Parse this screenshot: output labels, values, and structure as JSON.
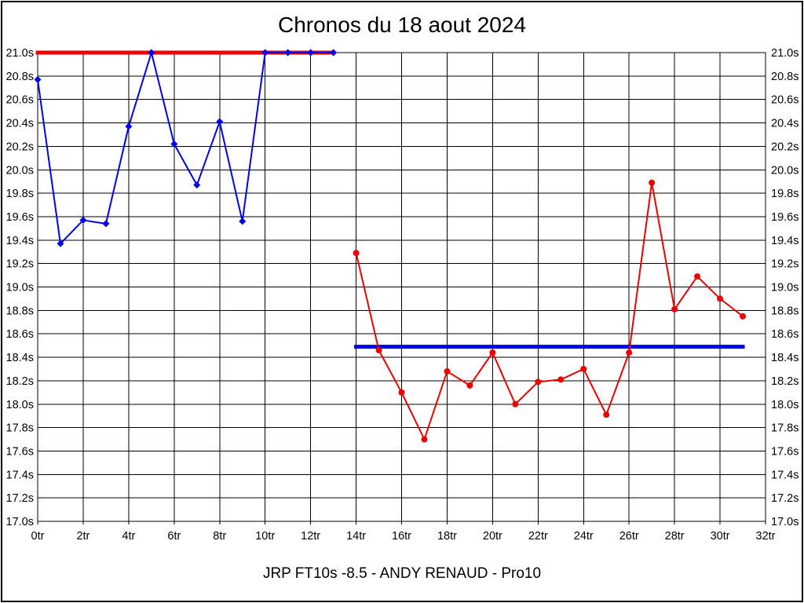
{
  "chart_data": {
    "type": "line",
    "title": "Chronos du 18 aout 2024",
    "footer_label": "JRP FT10s -8.5 - ANDY RENAUD - Pro10",
    "xlabel": "",
    "ylabel": "",
    "x_unit": "tr",
    "y_unit": "s",
    "xlim": [
      0,
      32
    ],
    "ylim": [
      17.0,
      21.0
    ],
    "x_tick_step": 2,
    "y_tick_step": 0.2,
    "grid": true,
    "x_tick_labels": [
      "0tr",
      "2tr",
      "4tr",
      "6tr",
      "8tr",
      "10tr",
      "12tr",
      "14tr",
      "16tr",
      "18tr",
      "20tr",
      "22tr",
      "24tr",
      "26tr",
      "28tr",
      "30tr",
      "32tr"
    ],
    "y_tick_labels_top_to_bottom": [
      "21.0s",
      "20.8s",
      "20.6s",
      "20.4s",
      "20.2s",
      "20.0s",
      "19.8s",
      "19.6s",
      "19.4s",
      "19.2s",
      "19.0s",
      "18.8s",
      "18.6s",
      "18.4s",
      "18.2s",
      "18.0s",
      "17.8s",
      "17.6s",
      "17.4s",
      "17.2s",
      "17.0s"
    ],
    "series": [
      {
        "name": "chronos-serie-bleue",
        "color": "#0000ee",
        "marker": "diamond",
        "x": [
          0,
          1,
          2,
          3,
          4,
          5,
          6,
          7,
          8,
          9,
          10,
          11,
          12,
          13
        ],
        "values": [
          20.77,
          19.37,
          19.57,
          19.54,
          20.37,
          21.0,
          20.22,
          19.87,
          20.41,
          19.56,
          21.0,
          21.0,
          21.0,
          21.0
        ]
      },
      {
        "name": "chronos-serie-rouge",
        "color": "#ee0000",
        "marker": "circle",
        "x": [
          14,
          15,
          16,
          17,
          18,
          19,
          20,
          21,
          22,
          23,
          24,
          25,
          26,
          27,
          28,
          29,
          30,
          31
        ],
        "values": [
          19.29,
          18.46,
          18.1,
          17.7,
          18.28,
          18.16,
          18.44,
          18.0,
          18.19,
          18.21,
          18.3,
          17.91,
          18.44,
          19.89,
          18.81,
          19.09,
          18.9,
          18.75
        ]
      }
    ],
    "reference_lines": [
      {
        "name": "ligne-reference-rouge",
        "color": "#ee0000",
        "y": 21.0,
        "x_start": 0,
        "x_end": 13,
        "stroke_width": 5
      },
      {
        "name": "ligne-reference-bleue",
        "color": "#0000ee",
        "y": 18.49,
        "x_start": 14,
        "x_end": 31,
        "stroke_width": 5
      }
    ],
    "legend_position": "none"
  }
}
